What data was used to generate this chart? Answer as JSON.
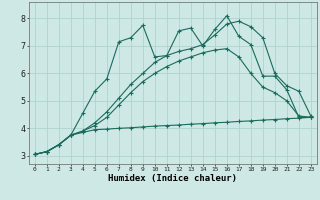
{
  "xlabel": "Humidex (Indice chaleur)",
  "bg_color": "#cde8e5",
  "grid_color": "#aacfcc",
  "line_color": "#1a6b5a",
  "xlim": [
    -0.5,
    23.5
  ],
  "ylim": [
    2.7,
    8.6
  ],
  "xticks": [
    0,
    1,
    2,
    3,
    4,
    5,
    6,
    7,
    8,
    9,
    10,
    11,
    12,
    13,
    14,
    15,
    16,
    17,
    18,
    19,
    20,
    21,
    22,
    23
  ],
  "yticks": [
    3,
    4,
    5,
    6,
    7,
    8
  ],
  "line1_x": [
    0,
    1,
    2,
    3,
    4,
    5,
    6,
    7,
    8,
    9,
    10,
    11,
    12,
    13,
    14,
    15,
    16,
    17,
    18,
    19,
    20,
    21,
    22,
    23
  ],
  "line1_y": [
    3.05,
    3.15,
    3.4,
    3.75,
    3.85,
    3.95,
    3.97,
    4.0,
    4.02,
    4.05,
    4.08,
    4.1,
    4.12,
    4.15,
    4.17,
    4.2,
    4.22,
    4.25,
    4.27,
    4.3,
    4.32,
    4.35,
    4.37,
    4.4
  ],
  "line2_x": [
    0,
    1,
    2,
    3,
    4,
    5,
    6,
    7,
    8,
    9,
    10,
    11,
    12,
    13,
    14,
    15,
    16,
    17,
    18,
    19,
    20,
    21,
    22,
    23
  ],
  "line2_y": [
    3.05,
    3.15,
    3.4,
    3.75,
    3.9,
    4.1,
    4.4,
    4.85,
    5.3,
    5.7,
    6.0,
    6.25,
    6.45,
    6.6,
    6.75,
    6.85,
    6.9,
    6.6,
    6.0,
    5.5,
    5.3,
    5.0,
    4.45,
    4.4
  ],
  "line3_x": [
    0,
    1,
    2,
    3,
    4,
    5,
    6,
    7,
    8,
    9,
    10,
    11,
    12,
    13,
    14,
    15,
    16,
    17,
    18,
    19,
    20,
    21,
    22,
    23
  ],
  "line3_y": [
    3.05,
    3.15,
    3.4,
    3.75,
    3.9,
    4.2,
    4.6,
    5.1,
    5.6,
    6.0,
    6.4,
    6.65,
    6.8,
    6.9,
    7.05,
    7.4,
    7.8,
    7.9,
    7.7,
    7.3,
    6.0,
    5.55,
    5.35,
    4.45
  ],
  "line4_x": [
    0,
    1,
    2,
    3,
    4,
    5,
    6,
    7,
    8,
    9,
    10,
    11,
    12,
    13,
    14,
    15,
    16,
    17,
    18,
    19,
    20,
    21,
    22,
    23
  ],
  "line4_y": [
    3.05,
    3.15,
    3.4,
    3.75,
    4.55,
    5.35,
    5.8,
    7.15,
    7.3,
    7.75,
    6.6,
    6.65,
    7.55,
    7.65,
    7.0,
    7.6,
    8.1,
    7.35,
    7.05,
    5.9,
    5.9,
    5.4,
    4.4,
    4.4
  ]
}
